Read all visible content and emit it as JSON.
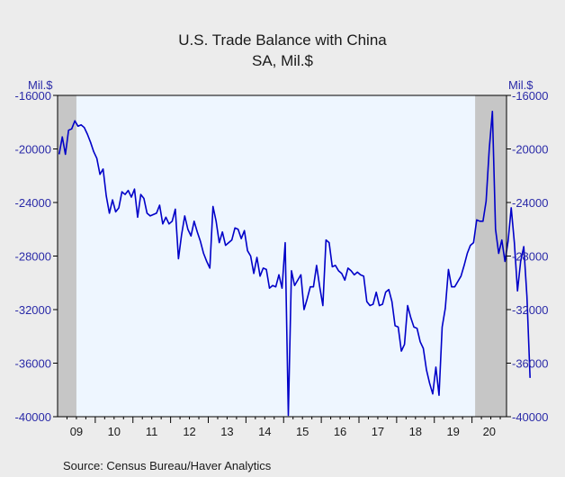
{
  "chart_data": {
    "type": "line",
    "title": "U.S. Trade Balance with China",
    "subtitle": "SA, Mil.$",
    "ylabel_left": "Mil.$",
    "ylabel_right": "Mil.$",
    "source": "Source:   Census Bureau/Haver Analytics",
    "ylim": [
      -40000,
      -16000
    ],
    "yticks": [
      -16000,
      -20000,
      -24000,
      -28000,
      -32000,
      -36000,
      -40000
    ],
    "ytick_labels": [
      "-16000",
      "-20000",
      "-24000",
      "-28000",
      "-32000",
      "-36000",
      "-40000"
    ],
    "x_start": "2009-01",
    "x_end": "2020-11",
    "year_labels": [
      "09",
      "10",
      "11",
      "12",
      "13",
      "14",
      "15",
      "16",
      "17",
      "18",
      "19",
      "20"
    ],
    "grid": false,
    "line_color": "#0000c8",
    "recession_shading": [
      {
        "start": "2009-01",
        "end": "2009-06"
      },
      {
        "start": "2020-02",
        "end": "2020-11"
      }
    ],
    "series": [
      {
        "values": [
          -20400,
          -19100,
          -20400,
          -18600,
          -18500,
          -17900,
          -18300,
          -18200,
          -18400,
          -18900,
          -19500,
          -20200,
          -20700,
          -21900,
          -21500,
          -23500,
          -24800,
          -23800,
          -24700,
          -24400,
          -23200,
          -23400,
          -23100,
          -23600,
          -23000,
          -25100,
          -23400,
          -23700,
          -24800,
          -25000,
          -24900,
          -24800,
          -24200,
          -25600,
          -25100,
          -25600,
          -25400,
          -24500,
          -28200,
          -26400,
          -25000,
          -26000,
          -26500,
          -25400,
          -26200,
          -26900,
          -27800,
          -28400,
          -28900,
          -24300,
          -25400,
          -27000,
          -26200,
          -27200,
          -27000,
          -26800,
          -25900,
          -26000,
          -26700,
          -26100,
          -27600,
          -28000,
          -29300,
          -28100,
          -29500,
          -28900,
          -29000,
          -30400,
          -30200,
          -30300,
          -29400,
          -30400,
          -27000,
          -39900,
          -29100,
          -30200,
          -29800,
          -29400,
          -32000,
          -31200,
          -30300,
          -30300,
          -28700,
          -30300,
          -31700,
          -26800,
          -27000,
          -28800,
          -28700,
          -29100,
          -29300,
          -29800,
          -28900,
          -29100,
          -29400,
          -29200,
          -29400,
          -29500,
          -31400,
          -31700,
          -31600,
          -30700,
          -31700,
          -31600,
          -30700,
          -30500,
          -31400,
          -33200,
          -33300,
          -35100,
          -34600,
          -31700,
          -32600,
          -33300,
          -33400,
          -34400,
          -34900,
          -36500,
          -37500,
          -38300,
          -36300,
          -38400,
          -33300,
          -31900,
          -29000,
          -30300,
          -30300,
          -29900,
          -29500,
          -28700,
          -27800,
          -27200,
          -27000,
          -25300,
          -25400,
          -25400,
          -23900,
          -20000,
          -17200,
          -26000,
          -27800,
          -26800,
          -28400,
          -26900,
          -24400,
          -27000,
          -30600,
          -28400,
          -27300,
          -31000,
          -37100
        ]
      }
    ]
  }
}
